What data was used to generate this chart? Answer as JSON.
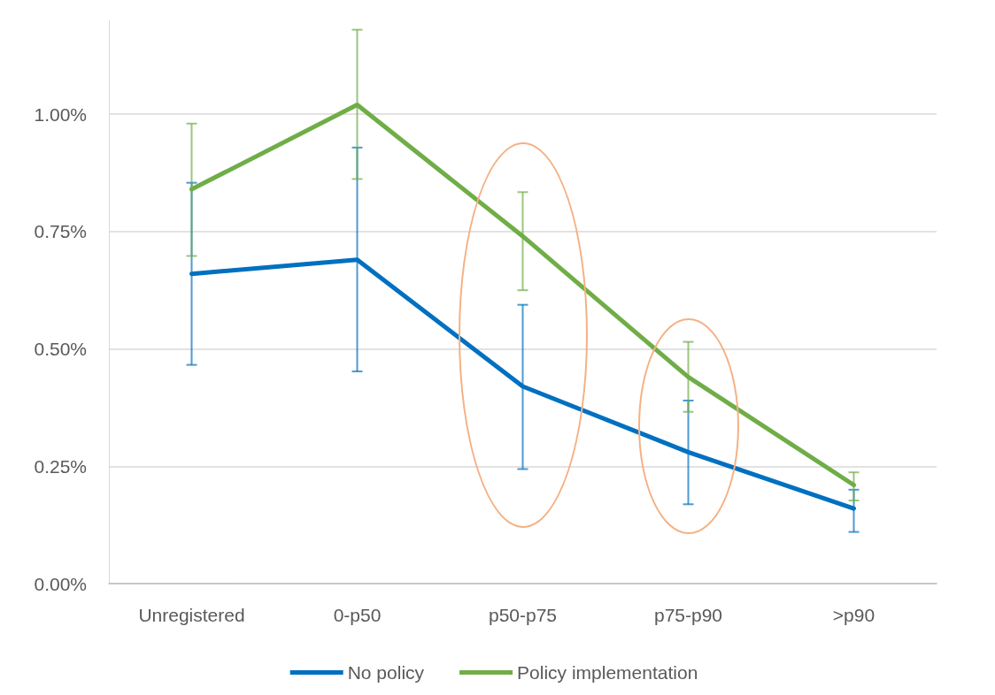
{
  "chart_data": {
    "type": "line",
    "categories": [
      "Unregistered",
      "0-p50",
      "p50-p75",
      "p75-p90",
      ">p90"
    ],
    "series": [
      {
        "name": "No policy",
        "color": "#0070c0",
        "values": [
          0.66,
          0.69,
          0.42,
          0.28,
          0.16
        ],
        "errors": [
          [
            0.466,
            0.854
          ],
          [
            0.452,
            0.929
          ],
          [
            0.244,
            0.594
          ],
          [
            0.169,
            0.39
          ],
          [
            0.11,
            0.2
          ]
        ]
      },
      {
        "name": "Policy implementation",
        "color": "#70ad47",
        "values": [
          0.84,
          1.02,
          0.74,
          0.44,
          0.21
        ],
        "errors": [
          [
            0.698,
            0.98
          ],
          [
            0.862,
            1.18
          ],
          [
            0.625,
            0.834
          ],
          [
            0.366,
            0.515
          ],
          [
            0.177,
            0.237
          ]
        ]
      }
    ],
    "ylim": [
      0,
      1.2
    ],
    "yticks": [
      {
        "value": 0,
        "label": "0.00%"
      },
      {
        "value": 0.25,
        "label": "0.25%"
      },
      {
        "value": 0.5,
        "label": "0.50%"
      },
      {
        "value": 0.75,
        "label": "0.75%"
      },
      {
        "value": 1,
        "label": "1.00%"
      }
    ],
    "grid": "y",
    "legend": "bottom",
    "marker": "none",
    "line_style": "solid"
  }
}
